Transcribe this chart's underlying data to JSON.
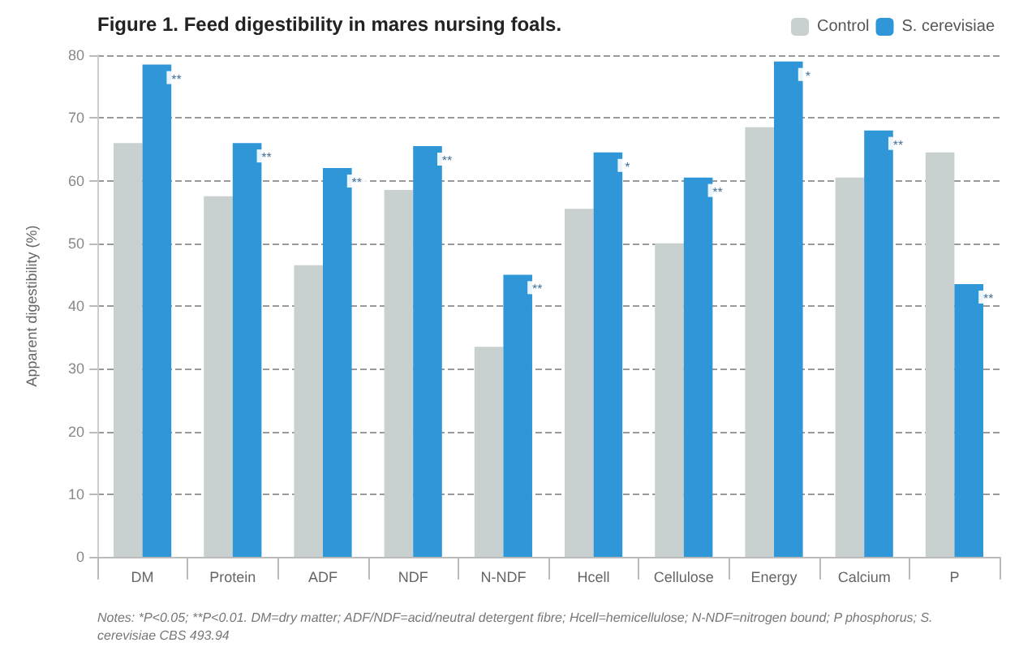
{
  "chart_data": {
    "type": "bar",
    "title": "Figure 1. Feed digestibility in mares nursing foals.",
    "ylabel": "Apparent digestibility (%)",
    "categories": [
      "DM",
      "Protein",
      "ADF",
      "NDF",
      "N-NDF",
      "Hcell",
      "Cellulose",
      "Energy",
      "Calcium",
      "P"
    ],
    "series": [
      {
        "name": "Control",
        "color": "#c9d0d0",
        "values": [
          66,
          57.5,
          46.5,
          58.5,
          33.5,
          55.5,
          50,
          68.5,
          60.5,
          64.5
        ]
      },
      {
        "name": "S. cerevisiae",
        "color": "#2f97d8",
        "values": [
          78.5,
          66,
          62,
          65.5,
          45,
          64.5,
          60.5,
          79,
          68,
          43.5
        ]
      }
    ],
    "ylim": [
      0,
      80
    ],
    "yticks": [
      0,
      10,
      20,
      30,
      40,
      50,
      60,
      70,
      80
    ],
    "grid": "y",
    "legend": "top right",
    "annotations": [
      {
        "text": "**",
        "x": "DM",
        "y": 78.5
      },
      {
        "text": "**",
        "x": "Protein",
        "y": 66
      },
      {
        "text": "**",
        "x": "ADF",
        "y": 62
      },
      {
        "text": "**",
        "x": "NDF",
        "y": 65.5
      },
      {
        "text": "**",
        "x": "N-NDF",
        "y": 45
      },
      {
        "text": "*",
        "x": "Hcell",
        "y": 64.5
      },
      {
        "text": "**",
        "x": "Cellulose",
        "y": 60.5
      },
      {
        "text": "*",
        "x": "Energy",
        "y": 79
      },
      {
        "text": "**",
        "x": "Calcium",
        "y": 68
      },
      {
        "text": "**",
        "x": "P",
        "y": 43.5
      },
      "Notes: *P<0.05; **P<0.01. DM=dry matter; ADF/NDF=acid/neutral detergent fibre; Hcell=hemicellulose; N-NDF=nitrogen bound; P phosphorus; S. cerevisiae CBS 493.94"
    ]
  }
}
